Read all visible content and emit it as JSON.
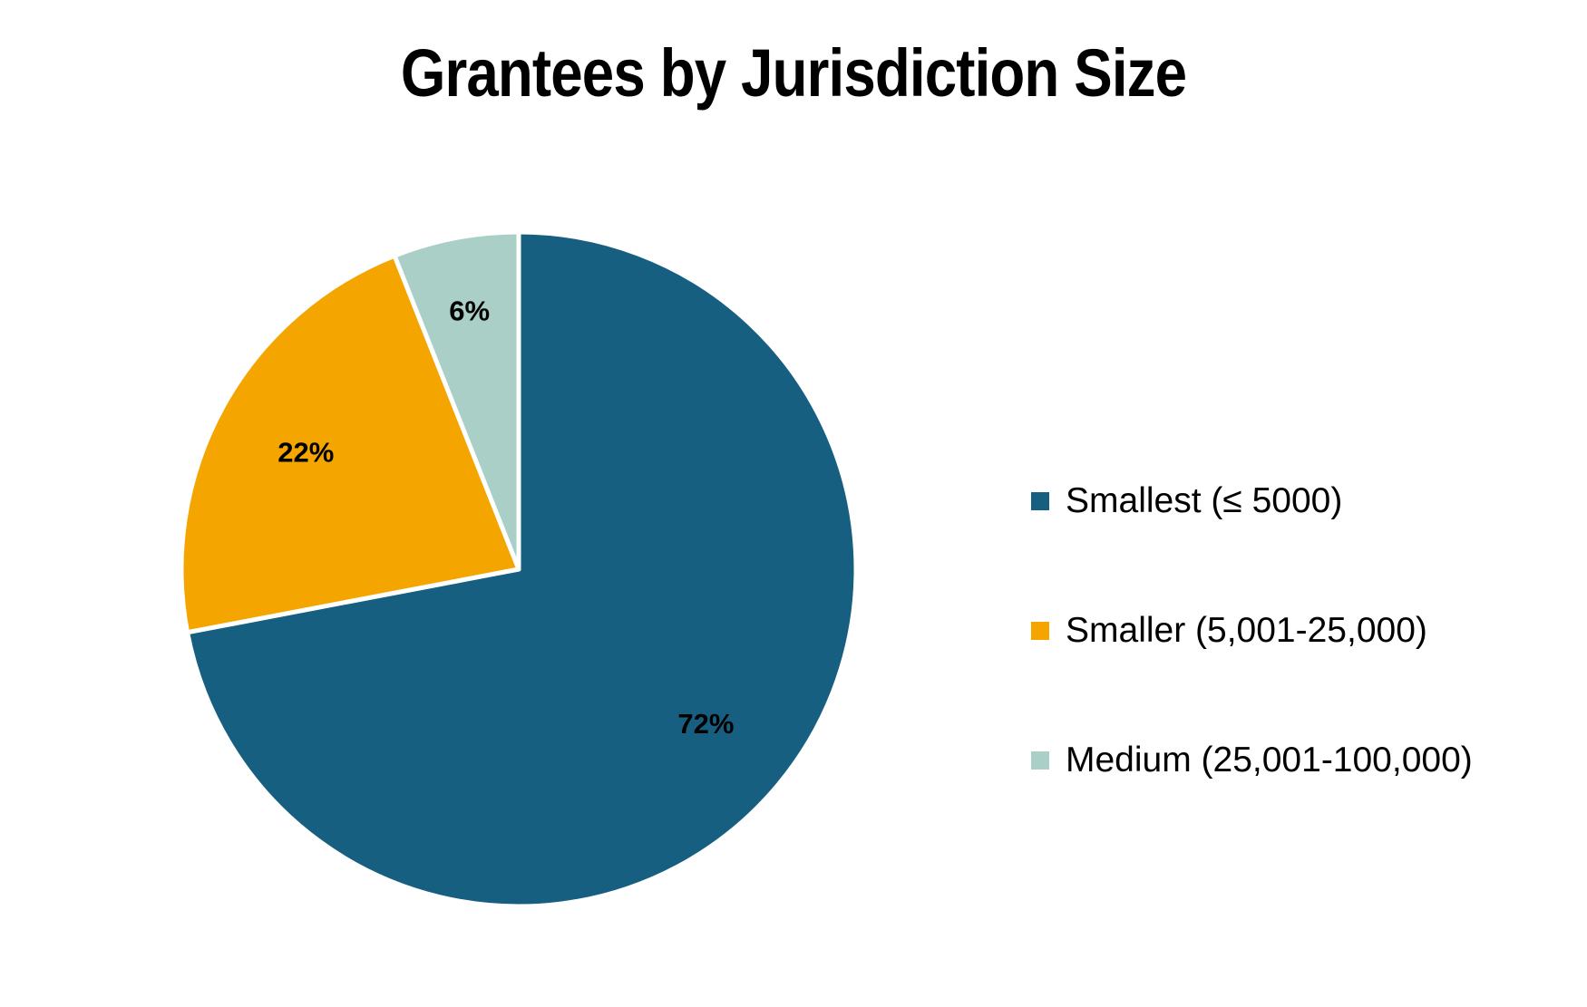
{
  "chart_data": {
    "type": "pie",
    "title": "Grantees by Jurisdiction Size",
    "categories": [
      "Smallest (≤ 5000)",
      "Smaller (5,001-25,000)",
      "Medium (25,001-100,000)"
    ],
    "values": [
      72,
      22,
      6
    ],
    "data_labels": [
      "72%",
      "22%",
      "6%"
    ],
    "colors": [
      "#175f81",
      "#f5a500",
      "#a9cfc7"
    ],
    "legend_position": "right"
  }
}
